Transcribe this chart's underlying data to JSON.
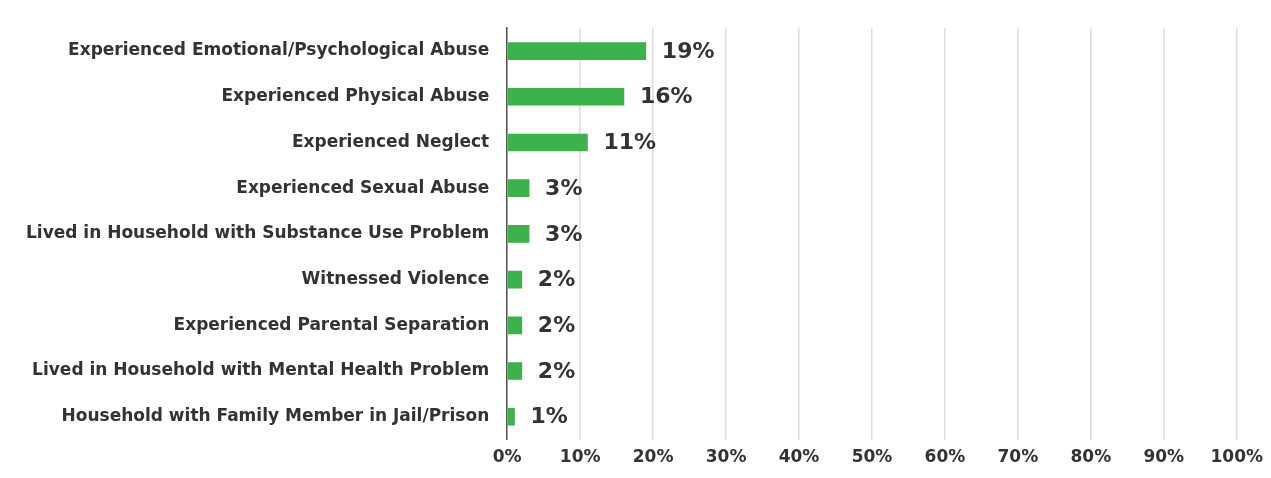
{
  "chart_data": {
    "type": "bar",
    "orientation": "horizontal",
    "categories": [
      "Experienced Emotional/Psychological Abuse",
      "Experienced Physical Abuse",
      "Experienced Neglect",
      "Experienced Sexual Abuse",
      "Lived in Household with Substance Use Problem",
      "Witnessed Violence",
      "Experienced Parental Separation",
      "Lived in Household with Mental Health Problem",
      "Household with Family Member in Jail/Prison"
    ],
    "values": [
      19,
      16,
      11,
      3,
      3,
      2,
      2,
      2,
      1
    ],
    "value_labels": [
      "19%",
      "16%",
      "11%",
      "3%",
      "3%",
      "2%",
      "2%",
      "2%",
      "1%"
    ],
    "color": "#3db14b",
    "xlim": [
      0,
      100
    ],
    "xticks": [
      {
        "value": 0,
        "label": "0%"
      },
      {
        "value": 10,
        "label": "10%"
      },
      {
        "value": 20,
        "label": "20%"
      },
      {
        "value": 30,
        "label": "30%"
      },
      {
        "value": 40,
        "label": "40%"
      },
      {
        "value": 50,
        "label": "50%"
      },
      {
        "value": 60,
        "label": "60%"
      },
      {
        "value": 70,
        "label": "70%"
      },
      {
        "value": 80,
        "label": "80%"
      },
      {
        "value": 90,
        "label": "90%"
      },
      {
        "value": 100,
        "label": "100%"
      }
    ],
    "grid": "x",
    "legend": false
  }
}
